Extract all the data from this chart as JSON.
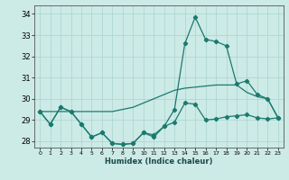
{
  "x": [
    0,
    1,
    2,
    3,
    4,
    5,
    6,
    7,
    8,
    9,
    10,
    11,
    12,
    13,
    14,
    15,
    16,
    17,
    18,
    19,
    20,
    21,
    22,
    23
  ],
  "line_top": [
    29.4,
    29.4,
    29.4,
    29.4,
    29.4,
    29.4,
    29.4,
    29.4,
    29.5,
    29.6,
    29.8,
    30.0,
    30.2,
    30.4,
    30.5,
    30.55,
    30.6,
    30.65,
    30.65,
    30.65,
    30.3,
    30.1,
    30.0,
    29.1
  ],
  "line_mid": [
    29.4,
    28.8,
    29.6,
    29.4,
    28.8,
    28.2,
    28.4,
    27.9,
    27.85,
    27.9,
    28.4,
    28.3,
    28.7,
    28.9,
    29.8,
    29.75,
    29.0,
    29.05,
    29.15,
    29.2,
    29.25,
    29.1,
    29.05,
    29.1
  ],
  "line_peak": [
    29.4,
    28.8,
    29.6,
    29.4,
    28.8,
    28.2,
    28.4,
    27.9,
    27.85,
    27.9,
    28.4,
    28.2,
    28.7,
    29.5,
    32.6,
    33.85,
    32.8,
    32.7,
    32.5,
    30.7,
    30.85,
    30.2,
    30.0,
    29.1
  ],
  "color": "#1a7a6e",
  "bg_color": "#cceae6",
  "grid_color": "#aad4d0",
  "xlabel": "Humidex (Indice chaleur)",
  "ylim": [
    27.7,
    34.4
  ],
  "xlim": [
    -0.5,
    23.5
  ],
  "yticks": [
    28,
    29,
    30,
    31,
    32,
    33,
    34
  ],
  "xticks": [
    0,
    1,
    2,
    3,
    4,
    5,
    6,
    7,
    8,
    9,
    10,
    11,
    12,
    13,
    14,
    15,
    16,
    17,
    18,
    19,
    20,
    21,
    22,
    23
  ]
}
